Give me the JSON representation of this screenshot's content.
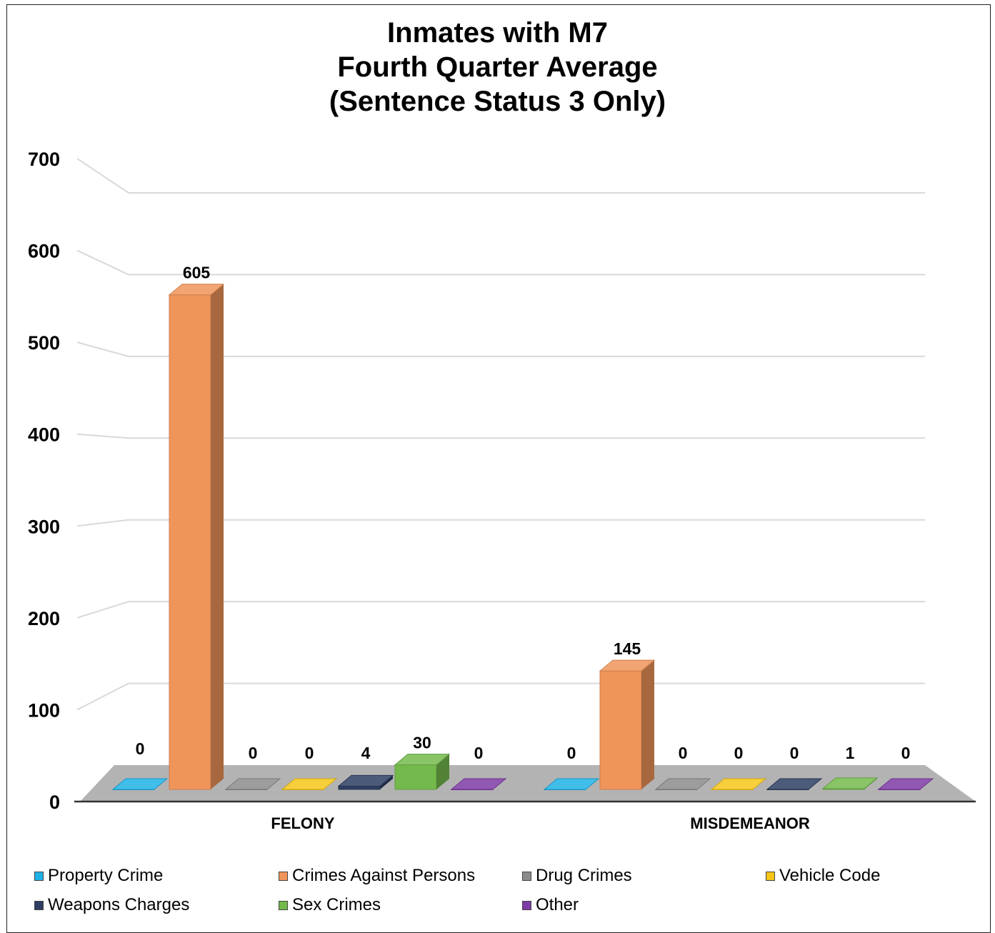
{
  "chart_data": {
    "type": "bar",
    "title_lines": [
      "Inmates with M7",
      "Fourth Quarter Average",
      "(Sentence Status 3 Only)"
    ],
    "categories": [
      "FELONY",
      "MISDEMEANOR"
    ],
    "ylim": [
      0,
      700
    ],
    "yticks": [
      "0",
      "100",
      "200",
      "300",
      "400",
      "500",
      "600",
      "700"
    ],
    "grid": true,
    "legend_position": "bottom",
    "series": [
      {
        "name": "Property Crime",
        "color": "#1fb1e6",
        "values": [
          0,
          0
        ]
      },
      {
        "name": "Crimes Against Persons",
        "color": "#f0955a",
        "values": [
          605,
          145
        ]
      },
      {
        "name": "Drug Crimes",
        "color": "#8c8c8c",
        "values": [
          0,
          0
        ]
      },
      {
        "name": "Vehicle Code",
        "color": "#f5c518",
        "values": [
          0,
          0
        ]
      },
      {
        "name": "Weapons Charges",
        "color": "#2e3e62",
        "values": [
          4,
          0
        ]
      },
      {
        "name": "Sex Crimes",
        "color": "#74b94b",
        "values": [
          30,
          1
        ]
      },
      {
        "name": "Other",
        "color": "#7e3ba5",
        "values": [
          0,
          0
        ]
      }
    ],
    "data_labels": [
      [
        "0",
        "605",
        "0",
        "0",
        "4",
        "30",
        "0"
      ],
      [
        "0",
        "145",
        "0",
        "0",
        "0",
        "1",
        "0"
      ]
    ]
  }
}
